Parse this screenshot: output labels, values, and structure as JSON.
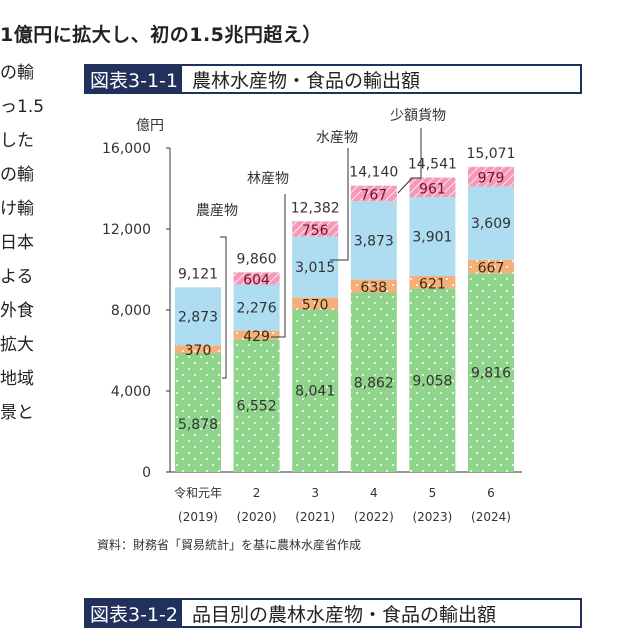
{
  "heading": "1億円に拡大し、初の1.5兆円超え）",
  "side_text": [
    "の輸",
    "っ1.5",
    "した",
    "の輸",
    "け輸",
    "日本",
    "よる",
    "外食",
    "拡大",
    "地域",
    "景と"
  ],
  "figure1": {
    "number": "図表3-1-1",
    "title": "農林水産物・食品の輸出額"
  },
  "figure2": {
    "number": "図表3-1-2",
    "title": "品目別の農林水産物・食品の輸出額"
  },
  "source": "資料：財務省「貿易統計」を基に農林水産省作成",
  "colors": {
    "agri": "#8fd48b",
    "forest": "#f5b07a",
    "fish": "#aedcf0",
    "small": "#f49ab8",
    "navy": "#22305c"
  },
  "chart_data": {
    "type": "bar",
    "stacked": true,
    "ylabel": "億円",
    "ylim": [
      0,
      16000
    ],
    "yticks": [
      "0",
      "4,000",
      "8,000",
      "12,000",
      "16,000"
    ],
    "categories": [
      {
        "era": "令和元年",
        "year": "(2019)"
      },
      {
        "era": "2",
        "year": "(2020)"
      },
      {
        "era": "3",
        "year": "(2021)"
      },
      {
        "era": "4",
        "year": "(2022)"
      },
      {
        "era": "5",
        "year": "(2023)"
      },
      {
        "era": "6",
        "year": "(2024)"
      }
    ],
    "series": [
      {
        "name": "農産物",
        "key": "agri",
        "values": [
          5878,
          6552,
          8041,
          8862,
          9058,
          9816
        ],
        "labels": [
          "5,878",
          "6,552",
          "8,041",
          "8,862",
          "9,058",
          "9,816"
        ]
      },
      {
        "name": "林産物",
        "key": "forest",
        "values": [
          370,
          429,
          570,
          638,
          621,
          667
        ],
        "labels": [
          "370",
          "429",
          "570",
          "638",
          "621",
          "667"
        ]
      },
      {
        "name": "水産物",
        "key": "fish",
        "values": [
          2873,
          2276,
          3015,
          3873,
          3901,
          3609
        ],
        "labels": [
          "2,873",
          "2,276",
          "3,015",
          "3,873",
          "3,901",
          "3,609"
        ]
      },
      {
        "name": "少額貨物",
        "key": "small",
        "values": [
          0,
          604,
          756,
          767,
          961,
          979
        ],
        "labels": [
          "",
          "604",
          "756",
          "767",
          "961",
          "979"
        ]
      }
    ],
    "totals": [
      "9,121",
      "9,860",
      "12,382",
      "14,140",
      "14,541",
      "15,071"
    ],
    "grid": false
  }
}
